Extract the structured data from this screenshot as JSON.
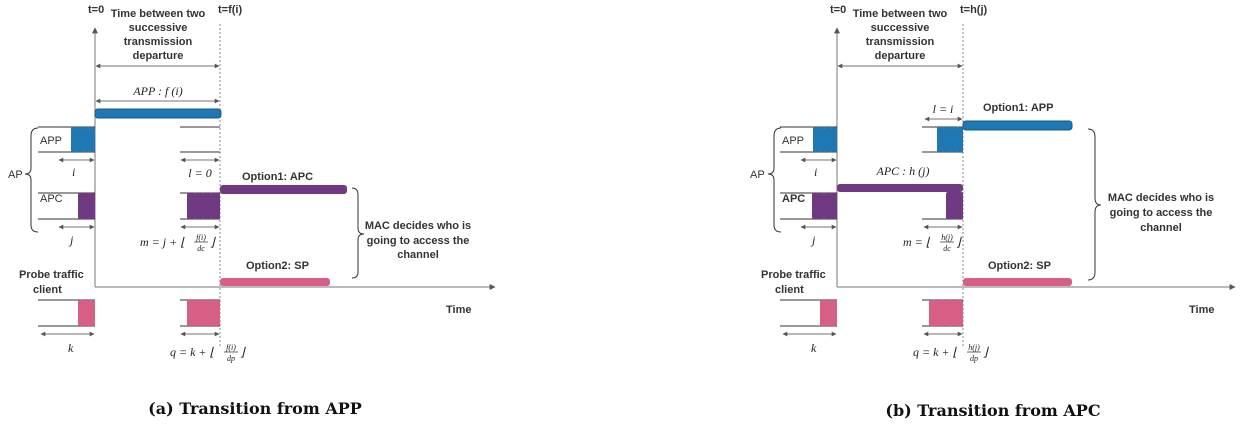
{
  "colors": {
    "app": "#1f77b4",
    "apc": "#6f3a82",
    "sp": "#d75f86"
  },
  "left": {
    "t0": "t=0",
    "t1": "t=f(i)",
    "interval_label": [
      "Time between two",
      "successive",
      "transmission",
      "departure"
    ],
    "bar_label": "APP : f (i)",
    "ap": "AP",
    "app": "APP",
    "apc": "APC",
    "i": "i",
    "j": "j",
    "l_eq": "l = 0",
    "m_eq": "m = j + ⌊",
    "m_num": "f(i)",
    "m_den": "dc",
    "option1": "Option1: APC",
    "option2": "Option2: SP",
    "mac": [
      "MAC decides who is",
      "going to access the",
      "channel"
    ],
    "probe": [
      "Probe traffic",
      "client"
    ],
    "time": "Time",
    "k": "k",
    "q_eq": "q = k + ⌊",
    "q_num": "f(i)",
    "q_den": "dp",
    "caption": "(a) Transition from APP"
  },
  "right": {
    "t0": "t=0",
    "t1": "t=h(j)",
    "interval_label": [
      "Time between two",
      "successive",
      "transmission",
      "departure"
    ],
    "bar_label": "APC : h (j)",
    "ap": "AP",
    "app": "APP",
    "apc": "APC",
    "i": "i",
    "j": "j",
    "l_eq": "l = i",
    "m_eq": "m = ⌊",
    "m_num": "h(j)",
    "m_den": "dc",
    "option1": "Option1: APP",
    "option2": "Option2: SP",
    "mac": [
      "MAC decides who is",
      "going to access the",
      "channel"
    ],
    "probe": [
      "Probe traffic",
      "client"
    ],
    "time": "Time",
    "k": "k",
    "q_eq": "q = k + ⌊",
    "q_num": "h(j)",
    "q_den": "dp",
    "caption": "(b) Transition from APC"
  }
}
